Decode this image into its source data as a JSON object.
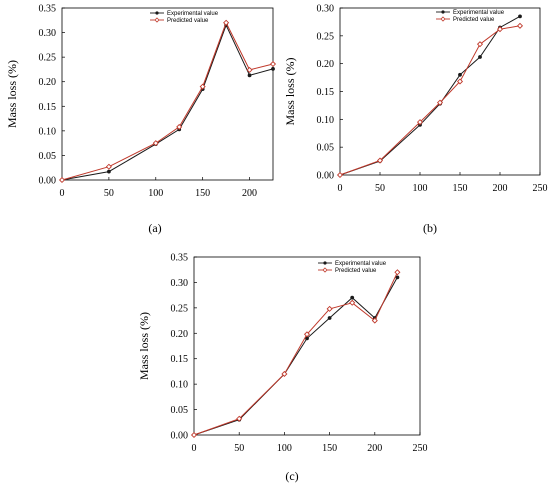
{
  "chart_data": [
    {
      "panel": "(a)",
      "type": "line",
      "ylabel": "Mass loss (%)",
      "xlabel": "",
      "xlim": [
        0,
        225
      ],
      "ylim": [
        0,
        0.35
      ],
      "xticks": [
        "0",
        "50",
        "100",
        "150",
        "200"
      ],
      "yticks": [
        "0.00",
        "0.05",
        "0.10",
        "0.15",
        "0.20",
        "0.25",
        "0.30",
        "0.35"
      ],
      "legend": "top-right",
      "series": [
        {
          "name": "Experimental value",
          "color": "#1a1a1a",
          "marker": "dot",
          "x": [
            0,
            50,
            100,
            125,
            150,
            175,
            200,
            225
          ],
          "y": [
            0.0,
            0.017,
            0.073,
            0.103,
            0.185,
            0.315,
            0.213,
            0.226
          ]
        },
        {
          "name": "Predicted value",
          "color": "#c0392b",
          "marker": "diamond",
          "x": [
            0,
            50,
            100,
            125,
            150,
            175,
            200,
            225
          ],
          "y": [
            0.0,
            0.027,
            0.075,
            0.108,
            0.19,
            0.32,
            0.224,
            0.236
          ]
        }
      ]
    },
    {
      "panel": "(b)",
      "type": "line",
      "ylabel": "Mass loss (%)",
      "xlabel": "",
      "xlim": [
        0,
        250
      ],
      "ylim": [
        0,
        0.3
      ],
      "xticks": [
        "0",
        "50",
        "100",
        "150",
        "200",
        "250"
      ],
      "yticks": [
        "0.00",
        "0.05",
        "0.10",
        "0.15",
        "0.20",
        "0.25",
        "0.30"
      ],
      "legend": "top-right",
      "series": [
        {
          "name": "Experimental value",
          "color": "#1a1a1a",
          "marker": "dot",
          "x": [
            0,
            50,
            100,
            125,
            150,
            175,
            200,
            225
          ],
          "y": [
            0.0,
            0.025,
            0.09,
            0.128,
            0.18,
            0.212,
            0.265,
            0.285
          ]
        },
        {
          "name": "Predicted value",
          "color": "#c0392b",
          "marker": "diamond",
          "x": [
            0,
            50,
            100,
            125,
            150,
            175,
            200,
            225
          ],
          "y": [
            0.0,
            0.026,
            0.095,
            0.13,
            0.168,
            0.235,
            0.262,
            0.268
          ]
        }
      ]
    },
    {
      "panel": "(c)",
      "type": "line",
      "ylabel": "Mass loss (%)",
      "xlabel": "",
      "xlim": [
        0,
        250
      ],
      "ylim": [
        0,
        0.35
      ],
      "xticks": [
        "0",
        "50",
        "100",
        "150",
        "200",
        "250"
      ],
      "yticks": [
        "0.00",
        "0.05",
        "0.10",
        "0.15",
        "0.20",
        "0.25",
        "0.30",
        "0.35"
      ],
      "legend": "top-right",
      "series": [
        {
          "name": "Experimental value",
          "color": "#1a1a1a",
          "marker": "dot",
          "x": [
            0,
            50,
            100,
            125,
            150,
            175,
            200,
            225
          ],
          "y": [
            0.0,
            0.03,
            0.12,
            0.19,
            0.23,
            0.27,
            0.23,
            0.31
          ]
        },
        {
          "name": "Predicted value",
          "color": "#c0392b",
          "marker": "diamond",
          "x": [
            0,
            50,
            100,
            125,
            150,
            175,
            200,
            225
          ],
          "y": [
            0.0,
            0.032,
            0.12,
            0.198,
            0.248,
            0.26,
            0.225,
            0.32
          ]
        }
      ]
    }
  ]
}
